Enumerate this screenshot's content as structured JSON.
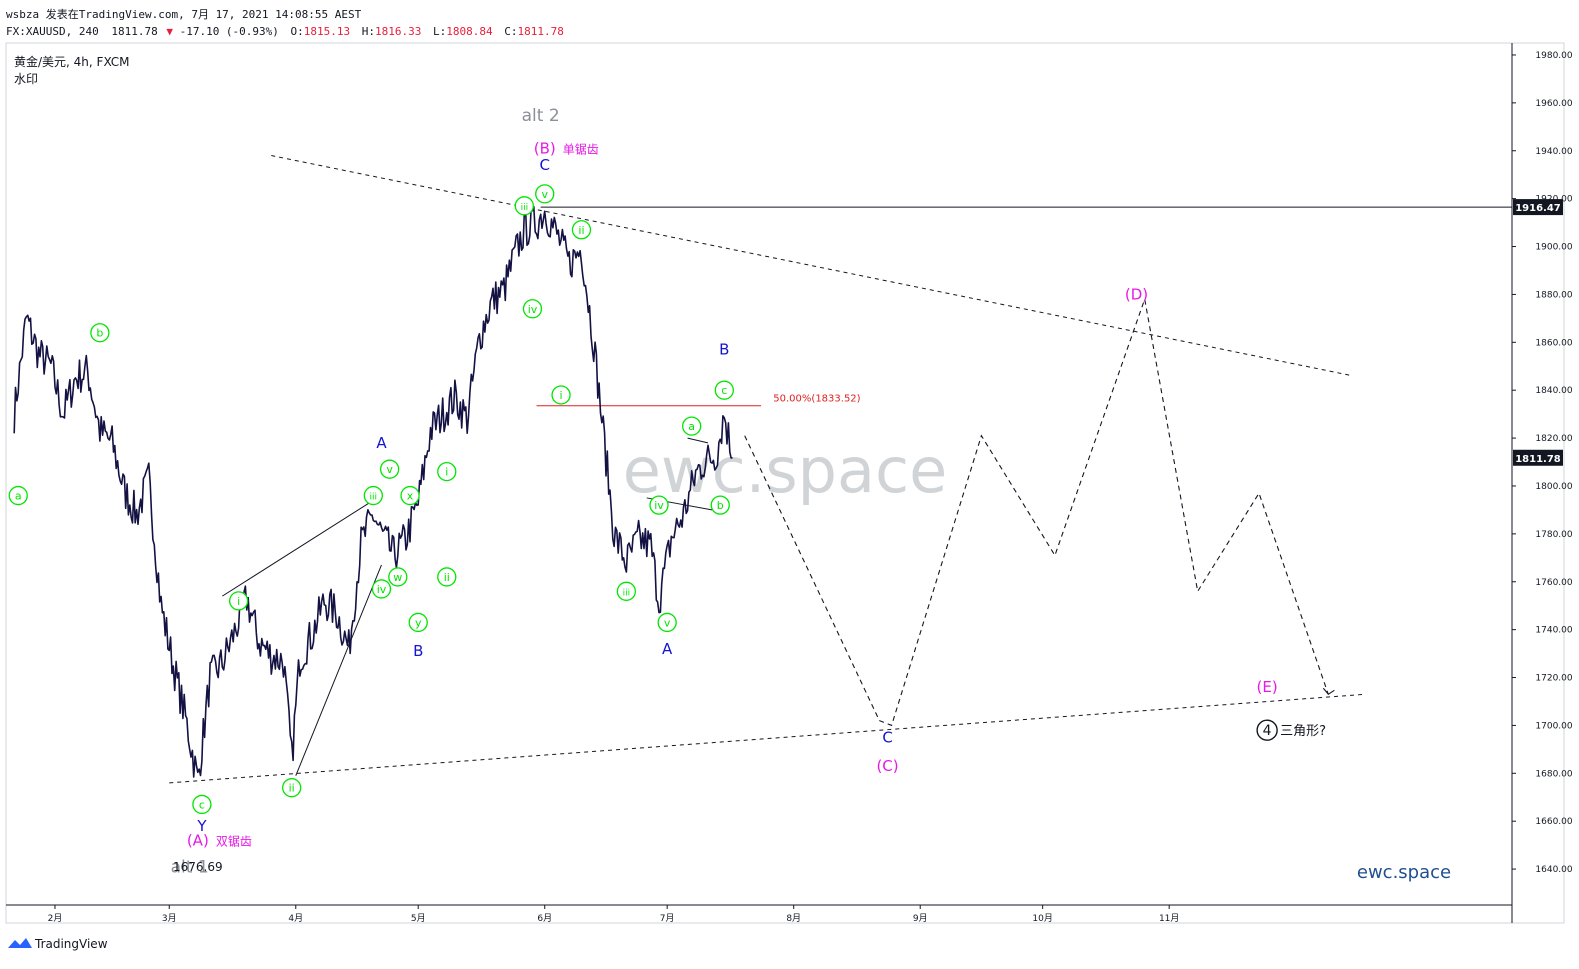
{
  "header": {
    "line1": "wsbza 发表在TradingView.com, 7月 17, 2021 14:08:55 AEST",
    "symbol": "FX:XAUUSD, 240",
    "last": "1811.78",
    "change_arrow": "▼",
    "change": "-17.10 (-0.93%)",
    "o_label": "O:",
    "o": "1815.13",
    "h_label": "H:",
    "h": "1816.33",
    "l_label": "L:",
    "l": "1808.84",
    "c_label": "C:",
    "c": "1811.78",
    "instrument": "黄金/美元, 4h, FXCM",
    "watermark_label": "水印"
  },
  "watermark_text": "ewc.space",
  "brand": "ewc.space",
  "footer": {
    "logo_text": "TradingView"
  },
  "colors": {
    "candles": "#131243",
    "wave_green": "#00e600",
    "wave_blue": "#1414d2",
    "wave_magenta": "#e619e6",
    "grey_label": "#8a8f99",
    "fib": "#e02020",
    "accent": "#2962ff"
  },
  "chart_data": {
    "type": "line",
    "x_axis": {
      "tick_labels": [
        "2月",
        "3月",
        "4月",
        "5月",
        "6月",
        "7月",
        "8月",
        "9月",
        "10月",
        "11月"
      ]
    },
    "y_axis": {
      "ylim": [
        1625,
        1985
      ],
      "tick_labels": [
        "1640.00",
        "1660.00",
        "1680.00",
        "1700.00",
        "1720.00",
        "1740.00",
        "1760.00",
        "1780.00",
        "1800.00",
        "1820.00",
        "1840.00",
        "1860.00",
        "1880.00",
        "1900.00",
        "1920.00",
        "1940.00",
        "1960.00",
        "1980.00"
      ],
      "price_tags": [
        {
          "value": 1916.47,
          "label": "1916.47"
        },
        {
          "value": 1811.78,
          "label": "1811.78"
        }
      ]
    },
    "series": [
      {
        "x": [
          "2021-01-22",
          "2021-01-25",
          "2021-01-28",
          "2021-01-31",
          "2021-02-03",
          "2021-02-06",
          "2021-02-09",
          "2021-02-12",
          "2021-02-15",
          "2021-02-18",
          "2021-02-21",
          "2021-02-24",
          "2021-02-27",
          "2021-03-02",
          "2021-03-05",
          "2021-03-08",
          "2021-03-11",
          "2021-03-14",
          "2021-03-17",
          "2021-03-20",
          "2021-03-23",
          "2021-03-26",
          "2021-03-29",
          "2021-03-31",
          "2021-04-02",
          "2021-04-05",
          "2021-04-08",
          "2021-04-11",
          "2021-04-14",
          "2021-04-17",
          "2021-04-20",
          "2021-04-22",
          "2021-04-25",
          "2021-04-28",
          "2021-05-01",
          "2021-05-04",
          "2021-05-07",
          "2021-05-10",
          "2021-05-13",
          "2021-05-16",
          "2021-05-19",
          "2021-05-22",
          "2021-05-25",
          "2021-05-27",
          "2021-05-30",
          "2021-06-01",
          "2021-06-04",
          "2021-06-07",
          "2021-06-10",
          "2021-06-13",
          "2021-06-16",
          "2021-06-18",
          "2021-06-21",
          "2021-06-24",
          "2021-06-27",
          "2021-06-29",
          "2021-07-02",
          "2021-07-05",
          "2021-07-08",
          "2021-07-10",
          "2021-07-13",
          "2021-07-15",
          "2021-07-17"
        ],
        "values": [
          1830,
          1870,
          1855,
          1850,
          1830,
          1845,
          1848,
          1823,
          1818,
          1798,
          1788,
          1803,
          1750,
          1725,
          1703,
          1677,
          1720,
          1726,
          1739,
          1753,
          1735,
          1729,
          1727,
          1686,
          1728,
          1738,
          1752,
          1747,
          1732,
          1776,
          1788,
          1780,
          1771,
          1778,
          1793,
          1823,
          1830,
          1837,
          1828,
          1862,
          1877,
          1882,
          1898,
          1907,
          1910,
          1915,
          1905,
          1893,
          1899,
          1860,
          1812,
          1780,
          1768,
          1778,
          1775,
          1752,
          1778,
          1788,
          1805,
          1810,
          1813,
          1830,
          1811.78
        ]
      }
    ],
    "annotations": {
      "fib_level": {
        "label": "50.00%(1833.52)",
        "value": 1833.52
      },
      "resistance_value": 1916.47,
      "low_value_label": "1676.69",
      "green_waves": [
        {
          "label": "a",
          "x": "2021-01-23",
          "y": 1796
        },
        {
          "label": "b",
          "x": "2021-02-12",
          "y": 1864
        },
        {
          "label": "c",
          "x": "2021-03-09",
          "y": 1667
        },
        {
          "label": "i",
          "x": "2021-03-18",
          "y": 1752
        },
        {
          "label": "ii",
          "x": "2021-03-31",
          "y": 1674
        },
        {
          "label": "iii",
          "x": "2021-04-20",
          "y": 1796
        },
        {
          "label": "iv",
          "x": "2021-04-22",
          "y": 1757
        },
        {
          "label": "v",
          "x": "2021-04-24",
          "y": 1807
        },
        {
          "label": "w",
          "x": "2021-04-26",
          "y": 1762
        },
        {
          "label": "x",
          "x": "2021-04-29",
          "y": 1796
        },
        {
          "label": "y",
          "x": "2021-05-01",
          "y": 1743
        },
        {
          "label": "ii",
          "x": "2021-05-08",
          "y": 1762
        },
        {
          "label": "i",
          "x": "2021-05-08",
          "y": 1806
        },
        {
          "label": "iii",
          "x": "2021-05-27",
          "y": 1917
        },
        {
          "label": "v",
          "x": "2021-06-01",
          "y": 1922
        },
        {
          "label": "ii",
          "x": "2021-06-10",
          "y": 1907
        },
        {
          "label": "iv",
          "x": "2021-05-29",
          "y": 1874
        },
        {
          "label": "i",
          "x": "2021-06-05",
          "y": 1838
        },
        {
          "label": "iii",
          "x": "2021-06-21",
          "y": 1756
        },
        {
          "label": "iv",
          "x": "2021-06-29",
          "y": 1792
        },
        {
          "label": "v",
          "x": "2021-07-01",
          "y": 1743
        },
        {
          "label": "a",
          "x": "2021-07-07",
          "y": 1825
        },
        {
          "label": "b",
          "x": "2021-07-14",
          "y": 1792
        },
        {
          "label": "c",
          "x": "2021-07-15",
          "y": 1840
        }
      ],
      "blue_waves": [
        {
          "label": "Y",
          "x": "2021-03-09",
          "y": 1658
        },
        {
          "label": "A",
          "x": "2021-04-22",
          "y": 1818
        },
        {
          "label": "B",
          "x": "2021-05-01",
          "y": 1731
        },
        {
          "label": "C",
          "x": "2021-06-01",
          "y": 1934
        },
        {
          "label": "A",
          "x": "2021-07-01",
          "y": 1732
        },
        {
          "label": "B",
          "x": "2021-07-15",
          "y": 1857
        },
        {
          "label": "C",
          "x": "2021-08-24",
          "y": 1695
        }
      ],
      "magenta_waves": [
        {
          "label": "(A)",
          "x": "2021-03-08",
          "y": 1652,
          "note": "双锯齿"
        },
        {
          "label": "(B)",
          "x": "2021-06-01",
          "y": 1941,
          "note": "单锯齿"
        },
        {
          "label": "(C)",
          "x": "2021-08-24",
          "y": 1683,
          "note": ""
        },
        {
          "label": "(D)",
          "x": "2021-10-24",
          "y": 1880,
          "note": ""
        },
        {
          "label": "(E)",
          "x": "2021-11-25",
          "y": 1716,
          "note": ""
        }
      ],
      "grey_labels": [
        {
          "label": "alt 1",
          "x": "2021-03-06",
          "y": 1641
        },
        {
          "label": "alt 2",
          "x": "2021-05-31",
          "y": 1955
        }
      ],
      "degree_marker": {
        "label": "4",
        "note": "三角形?",
        "x": "2021-11-25",
        "y": 1698
      },
      "projection": {
        "x": [
          "2021-07-20",
          "2021-08-22",
          "2021-08-25",
          "2021-09-16",
          "2021-10-04",
          "2021-10-26",
          "2021-11-08",
          "2021-11-23",
          "2021-12-10"
        ],
        "values": [
          1821,
          1702,
          1700,
          1821,
          1771,
          1878,
          1756,
          1797,
          1713
        ]
      },
      "upper_trendline": {
        "x": [
          "2021-03-26",
          "2021-12-16"
        ],
        "values": [
          1938,
          1846
        ]
      },
      "lower_trendline": {
        "x": [
          "2021-03-01",
          "2021-12-19"
        ],
        "values": [
          1676,
          1713
        ]
      }
    }
  }
}
